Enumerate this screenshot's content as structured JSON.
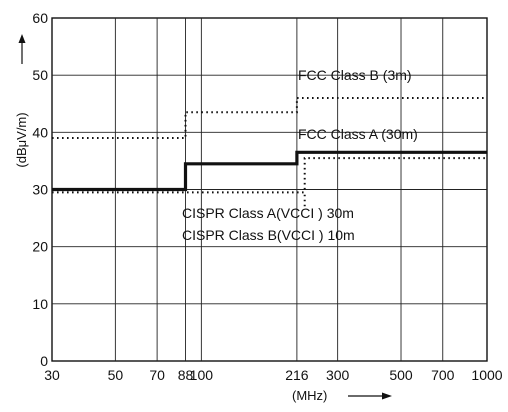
{
  "chart_data": {
    "type": "line",
    "xscale": "log",
    "xlim": [
      30,
      1000
    ],
    "ylim": [
      0,
      60
    ],
    "grid": true,
    "xlabel": "(MHz)",
    "ylabel": "(dBμV/m)",
    "yticks": [
      "0",
      "10",
      "20",
      "30",
      "40",
      "50",
      "60"
    ],
    "xticks": [
      "30",
      "50",
      "70",
      "88",
      "100",
      "216",
      "300",
      "500",
      "700",
      "1000"
    ],
    "series": [
      {
        "name": "FCC Class B (3m)",
        "style": "dotted",
        "points": [
          [
            30,
            39
          ],
          [
            88,
            39
          ],
          [
            88,
            43.5
          ],
          [
            216,
            43.5
          ],
          [
            216,
            46
          ],
          [
            1000,
            46
          ]
        ]
      },
      {
        "name": "FCC Class A (30m)",
        "style": "thick-solid",
        "points": [
          [
            30,
            30
          ],
          [
            88,
            30
          ],
          [
            88,
            34.5
          ],
          [
            216,
            34.5
          ],
          [
            216,
            36.5
          ],
          [
            1000,
            36.5
          ]
        ]
      },
      {
        "name": "CISPR Class A(VCCI ) 30m",
        "style": "dotted",
        "points": [
          [
            230,
            30
          ],
          [
            230,
            35.5
          ],
          [
            1000,
            35.5
          ]
        ]
      },
      {
        "name": "CISPR Class B(VCCI ) 10m",
        "style": "dotted",
        "points": [
          [
            30,
            29.5
          ],
          [
            230,
            29.5
          ],
          [
            230,
            27
          ]
        ]
      }
    ],
    "annotations": [
      "FCC  Class  B  (3m)",
      "FCC  Class  A  (30m)",
      "CISPR  Class  A(VCCI        )  30m",
      "CISPR  Class  B(VCCI        )  10m"
    ],
    "colors": {
      "ink": "#111111",
      "grid": "#222222"
    }
  }
}
